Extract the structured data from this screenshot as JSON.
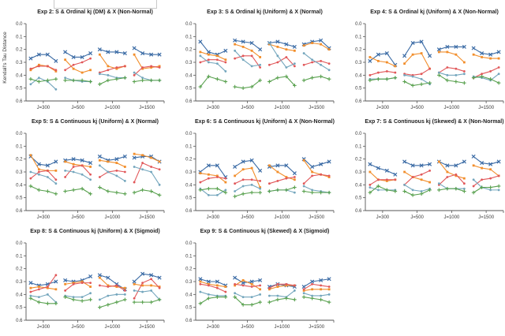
{
  "chart_data": {
    "type": "line",
    "ylabel": "Kendall's Tau Distance",
    "y_inverted": true,
    "ylim": [
      0.0,
      0.6
    ],
    "yticks": [
      "0.0",
      "0.1",
      "0.2",
      "0.3",
      "0.4",
      "0.5",
      "0.6"
    ],
    "x_groups": [
      "J=300",
      "J=500",
      "J=1000",
      "J=1500"
    ],
    "points_per_group": 4,
    "legend": {
      "box_visible": true,
      "labels_visible": false
    },
    "series_styles": [
      {
        "key": "blue",
        "color": "#3b6ba5",
        "marker": "x"
      },
      {
        "key": "orange",
        "color": "#f28e2b",
        "marker": "square"
      },
      {
        "key": "red",
        "color": "#e15759",
        "marker": "circle"
      },
      {
        "key": "teal",
        "color": "#74a6bd",
        "marker": "circle"
      },
      {
        "key": "green",
        "color": "#59a14f",
        "marker": "plus"
      }
    ],
    "subplots": [
      {
        "title": "Exp 2: S & Ordinal kj (DM) & X (Non-Normal)",
        "series": {
          "blue": [
            0.27,
            0.24,
            0.24,
            0.29,
            0.22,
            0.26,
            0.26,
            0.23,
            0.2,
            0.22,
            0.22,
            0.23,
            0.19,
            0.23,
            0.24,
            0.24
          ],
          "orange": [
            0.36,
            0.32,
            0.33,
            0.37,
            0.28,
            0.35,
            0.38,
            0.36,
            0.24,
            0.33,
            0.35,
            0.33,
            0.24,
            0.35,
            0.34,
            0.33
          ],
          "red": [
            0.35,
            0.33,
            0.33,
            0.36,
            0.36,
            0.32,
            0.3,
            0.27,
            0.38,
            0.36,
            0.34,
            0.33,
            0.4,
            0.34,
            0.33,
            0.34
          ],
          "teal": [
            0.47,
            0.42,
            0.45,
            0.51,
            0.42,
            0.44,
            0.45,
            0.45,
            0.39,
            0.4,
            0.42,
            0.42,
            0.38,
            0.42,
            0.44,
            0.44
          ],
          "green": [
            0.43,
            0.45,
            0.44,
            0.43,
            0.44,
            0.44,
            0.44,
            0.45,
            0.47,
            0.44,
            0.43,
            0.42,
            0.45,
            0.44,
            0.44,
            0.44
          ]
        }
      },
      {
        "title": "Exp 3: S & Ordinal kj (Uniform) & X (Normal)",
        "series": {
          "blue": [
            0.14,
            0.22,
            0.24,
            0.21,
            0.13,
            0.14,
            0.15,
            0.2,
            0.15,
            0.14,
            0.16,
            0.18,
            0.16,
            0.14,
            0.13,
            0.19
          ],
          "orange": [
            0.22,
            0.24,
            0.25,
            0.28,
            0.16,
            0.18,
            0.21,
            0.26,
            0.16,
            0.18,
            0.2,
            0.21,
            0.17,
            0.15,
            0.16,
            0.2
          ],
          "red": [
            0.3,
            0.28,
            0.28,
            0.3,
            0.27,
            0.25,
            0.25,
            0.34,
            0.32,
            0.3,
            0.26,
            0.33,
            0.32,
            0.3,
            0.29,
            0.31
          ],
          "teal": [
            0.25,
            0.3,
            0.31,
            0.37,
            0.21,
            0.28,
            0.33,
            0.32,
            0.15,
            0.25,
            0.34,
            0.31,
            0.23,
            0.28,
            0.32,
            0.36
          ],
          "green": [
            0.49,
            0.41,
            0.43,
            0.45,
            0.49,
            0.5,
            0.49,
            0.44,
            0.45,
            0.42,
            0.41,
            0.48,
            0.44,
            0.42,
            0.41,
            0.43
          ]
        }
      },
      {
        "title": "Exp 4: S & Ordinal kj (Uniform) & X (Non-Normal)",
        "series": {
          "blue": [
            0.29,
            0.24,
            0.23,
            0.32,
            0.25,
            0.15,
            0.14,
            0.25,
            0.2,
            0.18,
            0.18,
            0.18,
            0.19,
            0.23,
            0.24,
            0.22
          ],
          "orange": [
            0.26,
            0.29,
            0.3,
            0.33,
            0.31,
            0.24,
            0.23,
            0.35,
            0.22,
            0.22,
            0.24,
            0.3,
            0.24,
            0.26,
            0.27,
            0.27
          ],
          "red": [
            0.4,
            0.38,
            0.37,
            0.38,
            0.39,
            0.4,
            0.39,
            0.35,
            0.38,
            0.34,
            0.35,
            0.37,
            0.42,
            0.39,
            0.37,
            0.34
          ],
          "teal": [
            0.43,
            0.43,
            0.43,
            0.42,
            0.4,
            0.41,
            0.43,
            0.47,
            0.38,
            0.4,
            0.4,
            0.39,
            0.41,
            0.42,
            0.44,
            0.39
          ],
          "green": [
            0.44,
            0.43,
            0.43,
            0.42,
            0.45,
            0.48,
            0.47,
            0.46,
            0.4,
            0.44,
            0.45,
            0.46,
            0.42,
            0.41,
            0.43,
            0.46
          ]
        }
      },
      {
        "title": "Exp 5: S & Continuous kj (Uniform) & X (Normal)",
        "series": {
          "blue": [
            0.18,
            0.24,
            0.25,
            0.22,
            0.21,
            0.2,
            0.21,
            0.23,
            0.18,
            0.21,
            0.2,
            0.18,
            0.19,
            0.18,
            0.18,
            0.22
          ],
          "orange": [
            0.17,
            0.28,
            0.29,
            0.29,
            0.22,
            0.24,
            0.25,
            0.26,
            0.21,
            0.22,
            0.23,
            0.26,
            0.16,
            0.17,
            0.19,
            0.22
          ],
          "red": [
            0.35,
            0.3,
            0.29,
            0.36,
            0.34,
            0.26,
            0.25,
            0.32,
            0.34,
            0.3,
            0.29,
            0.3,
            0.38,
            0.23,
            0.26,
            0.28
          ],
          "teal": [
            0.3,
            0.32,
            0.34,
            0.39,
            0.29,
            0.3,
            0.32,
            0.36,
            0.25,
            0.3,
            0.33,
            0.37,
            0.26,
            0.28,
            0.3,
            0.4
          ],
          "green": [
            0.41,
            0.44,
            0.45,
            0.47,
            0.45,
            0.44,
            0.43,
            0.47,
            0.42,
            0.45,
            0.46,
            0.47,
            0.46,
            0.44,
            0.45,
            0.48
          ]
        }
      },
      {
        "title": "Exp 6: S & Continuous kj (Uniform) & X (Non-Normal)",
        "series": {
          "blue": [
            0.3,
            0.25,
            0.25,
            0.34,
            0.26,
            0.22,
            0.21,
            0.29,
            0.26,
            0.25,
            0.25,
            0.31,
            0.2,
            0.26,
            0.24,
            0.22
          ],
          "orange": [
            0.31,
            0.32,
            0.33,
            0.38,
            0.33,
            0.28,
            0.27,
            0.42,
            0.25,
            0.3,
            0.34,
            0.36,
            0.21,
            0.3,
            0.32,
            0.34
          ],
          "red": [
            0.38,
            0.35,
            0.34,
            0.35,
            0.39,
            0.36,
            0.36,
            0.37,
            0.39,
            0.37,
            0.35,
            0.34,
            0.39,
            0.33,
            0.32,
            0.33
          ],
          "teal": [
            0.43,
            0.48,
            0.48,
            0.44,
            0.45,
            0.41,
            0.4,
            0.43,
            0.45,
            0.44,
            0.44,
            0.46,
            0.41,
            0.44,
            0.45,
            0.46
          ],
          "green": [
            0.44,
            0.43,
            0.43,
            0.46,
            0.49,
            0.47,
            0.46,
            0.46,
            0.45,
            0.44,
            0.44,
            0.42,
            0.45,
            0.46,
            0.46,
            0.46
          ]
        }
      },
      {
        "title": "Exp 7: S & Continuous kj (Skewed) & X (Non-Normal)",
        "series": {
          "blue": [
            0.24,
            0.27,
            0.29,
            0.32,
            0.22,
            0.25,
            0.25,
            0.24,
            0.22,
            0.25,
            0.25,
            0.22,
            0.18,
            0.23,
            0.24,
            0.22
          ],
          "orange": [
            0.3,
            0.36,
            0.37,
            0.36,
            0.3,
            0.34,
            0.36,
            0.38,
            0.22,
            0.3,
            0.33,
            0.35,
            0.25,
            0.27,
            0.28,
            0.33
          ],
          "red": [
            0.4,
            0.36,
            0.36,
            0.36,
            0.4,
            0.34,
            0.32,
            0.29,
            0.4,
            0.34,
            0.32,
            0.39,
            0.41,
            0.36,
            0.35,
            0.33
          ],
          "teal": [
            0.42,
            0.44,
            0.44,
            0.44,
            0.4,
            0.44,
            0.45,
            0.43,
            0.39,
            0.43,
            0.43,
            0.43,
            0.36,
            0.42,
            0.44,
            0.44
          ],
          "green": [
            0.46,
            0.41,
            0.44,
            0.45,
            0.45,
            0.48,
            0.47,
            0.44,
            0.44,
            0.43,
            0.43,
            0.45,
            0.46,
            0.42,
            0.42,
            0.41
          ]
        }
      },
      {
        "title": "Exp 8: S & Continuous kj (Uniform) & X (Sigmoid)",
        "series": {
          "blue": [
            0.31,
            0.33,
            0.32,
            0.3,
            0.29,
            0.3,
            0.29,
            0.26,
            0.25,
            0.27,
            0.32,
            0.36,
            0.3,
            0.24,
            0.25,
            0.27
          ],
          "orange": [
            0.35,
            0.34,
            0.35,
            0.36,
            0.32,
            0.31,
            0.3,
            0.34,
            0.27,
            0.33,
            0.34,
            0.35,
            0.32,
            0.33,
            0.33,
            0.34
          ],
          "red": [
            0.38,
            0.36,
            0.34,
            0.25,
            0.37,
            0.32,
            0.31,
            0.31,
            0.33,
            0.34,
            0.33,
            0.37,
            0.43,
            0.31,
            0.28,
            0.35
          ],
          "teal": [
            0.41,
            0.42,
            0.4,
            0.46,
            0.41,
            0.42,
            0.42,
            0.39,
            0.44,
            0.41,
            0.4,
            0.4,
            0.37,
            0.38,
            0.37,
            0.44
          ],
          "green": [
            0.43,
            0.46,
            0.47,
            0.47,
            0.42,
            0.44,
            0.45,
            0.44,
            0.5,
            0.48,
            0.46,
            0.44,
            0.46,
            0.46,
            0.46,
            0.44
          ]
        }
      },
      {
        "title": "Exp 9: S & Continuous kj (Skewed) & X (Sigmoid)",
        "series": {
          "blue": [
            0.28,
            0.3,
            0.3,
            0.33,
            0.27,
            0.31,
            0.3,
            0.29,
            0.34,
            0.32,
            0.33,
            0.34,
            0.34,
            0.3,
            0.29,
            0.28
          ],
          "orange": [
            0.3,
            0.32,
            0.33,
            0.34,
            0.33,
            0.29,
            0.32,
            0.36,
            0.36,
            0.34,
            0.33,
            0.33,
            0.37,
            0.36,
            0.36,
            0.36
          ],
          "red": [
            0.32,
            0.33,
            0.35,
            0.38,
            0.32,
            0.33,
            0.34,
            0.33,
            0.35,
            0.32,
            0.32,
            0.33,
            0.36,
            0.32,
            0.33,
            0.34
          ],
          "teal": [
            0.38,
            0.4,
            0.41,
            0.41,
            0.39,
            0.42,
            0.42,
            0.4,
            0.41,
            0.41,
            0.42,
            0.37,
            0.39,
            0.41,
            0.41,
            0.4
          ],
          "green": [
            0.47,
            0.43,
            0.42,
            0.42,
            0.42,
            0.48,
            0.48,
            0.46,
            0.46,
            0.44,
            0.43,
            0.44,
            0.42,
            0.43,
            0.44,
            0.46
          ]
        }
      }
    ]
  }
}
